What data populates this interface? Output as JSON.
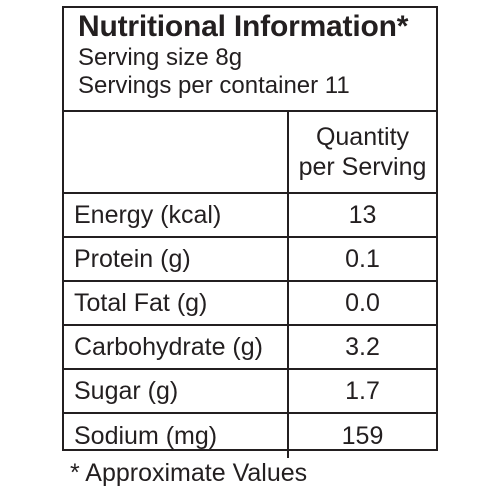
{
  "panel": {
    "title": "Nutritional Information*",
    "serving_size": "Serving size 8g",
    "servings_per_container": "Servings per container 11"
  },
  "table": {
    "header": {
      "line1": "Quantity",
      "line2": "per Serving"
    },
    "rows": [
      {
        "label": "Energy (kcal)",
        "value": "13"
      },
      {
        "label": "Protein (g)",
        "value": "0.1"
      },
      {
        "label": "Total Fat (g)",
        "value": "0.0"
      },
      {
        "label": "Carbohydrate (g)",
        "value": "3.2"
      },
      {
        "label": "Sugar (g)",
        "value": "1.7"
      },
      {
        "label": "Sodium (mg)",
        "value": "159"
      }
    ]
  },
  "footnote": "* Approximate Values"
}
